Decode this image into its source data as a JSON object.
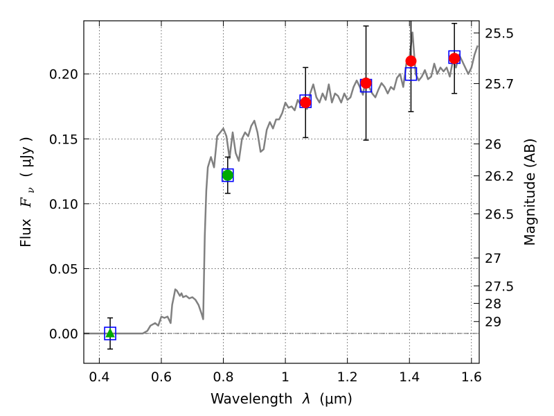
{
  "chart_data": {
    "type": "scatter",
    "xlabel_text": "Wavelength",
    "xlabel_symbol": "λ",
    "xlabel_unit": "(μm)",
    "ylabel_text": "Flux",
    "ylabel_symbol": "F",
    "ylabel_subscript": "ν",
    "ylabel_unit": "( μJy )",
    "y2label": "Magnitude (AB)",
    "xlim": [
      0.35,
      1.625
    ],
    "ylim": [
      -0.023,
      0.241
    ],
    "grid": true,
    "x_ticks": [
      {
        "value": 0.4,
        "label": "0.4"
      },
      {
        "value": 0.6,
        "label": "0.6"
      },
      {
        "value": 0.8,
        "label": "0.8"
      },
      {
        "value": 1.0,
        "label": "1"
      },
      {
        "value": 1.2,
        "label": "1.2"
      },
      {
        "value": 1.4,
        "label": "1.4"
      },
      {
        "value": 1.6,
        "label": "1.6"
      }
    ],
    "y_ticks": [
      {
        "value": 0.0,
        "label": "0.00"
      },
      {
        "value": 0.05,
        "label": "0.05"
      },
      {
        "value": 0.1,
        "label": "0.10"
      },
      {
        "value": 0.15,
        "label": "0.15"
      },
      {
        "value": 0.2,
        "label": "0.20"
      }
    ],
    "mag_ticks": [
      {
        "label": "25.5",
        "flux": 0.2316
      },
      {
        "label": "25.7",
        "flux": 0.1926
      },
      {
        "label": "26",
        "flux": 0.1461
      },
      {
        "label": "26.2",
        "flux": 0.1215
      },
      {
        "label": "26.5",
        "flux": 0.0922
      },
      {
        "label": "27",
        "flux": 0.0582
      },
      {
        "label": "27.5",
        "flux": 0.0367
      },
      {
        "label": "28",
        "flux": 0.0232
      },
      {
        "label": "29",
        "flux": 0.0092
      }
    ],
    "series": [
      {
        "kind": "model_sed",
        "color": "#808080",
        "x": [
          0.35,
          0.54,
          0.555,
          0.565,
          0.58,
          0.59,
          0.6,
          0.61,
          0.62,
          0.63,
          0.635,
          0.64,
          0.645,
          0.65,
          0.66,
          0.665,
          0.67,
          0.68,
          0.69,
          0.7,
          0.71,
          0.72,
          0.73,
          0.735,
          0.74,
          0.745,
          0.75,
          0.76,
          0.77,
          0.78,
          0.79,
          0.8,
          0.81,
          0.82,
          0.83,
          0.84,
          0.85,
          0.86,
          0.87,
          0.88,
          0.89,
          0.9,
          0.91,
          0.92,
          0.93,
          0.94,
          0.95,
          0.96,
          0.97,
          0.98,
          0.99,
          1.0,
          1.01,
          1.02,
          1.03,
          1.04,
          1.05,
          1.06,
          1.07,
          1.08,
          1.09,
          1.1,
          1.11,
          1.12,
          1.13,
          1.14,
          1.15,
          1.16,
          1.17,
          1.18,
          1.19,
          1.2,
          1.21,
          1.22,
          1.23,
          1.24,
          1.25,
          1.26,
          1.27,
          1.28,
          1.29,
          1.3,
          1.31,
          1.32,
          1.33,
          1.34,
          1.35,
          1.36,
          1.37,
          1.38,
          1.39,
          1.4,
          1.41,
          1.42,
          1.43,
          1.44,
          1.45,
          1.46,
          1.47,
          1.48,
          1.49,
          1.5,
          1.51,
          1.52,
          1.53,
          1.54,
          1.55,
          1.56,
          1.57,
          1.58,
          1.59,
          1.6,
          1.61,
          1.62
        ],
        "y": [
          0.0,
          0.0,
          0.002,
          0.006,
          0.008,
          0.006,
          0.013,
          0.012,
          0.013,
          0.008,
          0.022,
          0.028,
          0.034,
          0.033,
          0.029,
          0.031,
          0.028,
          0.029,
          0.027,
          0.028,
          0.026,
          0.022,
          0.015,
          0.011,
          0.075,
          0.11,
          0.128,
          0.136,
          0.128,
          0.152,
          0.155,
          0.158,
          0.152,
          0.135,
          0.155,
          0.139,
          0.133,
          0.15,
          0.155,
          0.152,
          0.16,
          0.164,
          0.155,
          0.14,
          0.142,
          0.157,
          0.163,
          0.158,
          0.165,
          0.165,
          0.17,
          0.178,
          0.174,
          0.175,
          0.172,
          0.18,
          0.176,
          0.182,
          0.173,
          0.185,
          0.192,
          0.182,
          0.178,
          0.185,
          0.18,
          0.192,
          0.178,
          0.185,
          0.183,
          0.178,
          0.185,
          0.18,
          0.182,
          0.19,
          0.195,
          0.19,
          0.184,
          0.197,
          0.19,
          0.185,
          0.182,
          0.188,
          0.193,
          0.19,
          0.185,
          0.19,
          0.188,
          0.197,
          0.2,
          0.19,
          0.208,
          0.212,
          0.232,
          0.2,
          0.195,
          0.198,
          0.203,
          0.196,
          0.198,
          0.208,
          0.2,
          0.205,
          0.202,
          0.205,
          0.198,
          0.21,
          0.205,
          0.215,
          0.21,
          0.205,
          0.2,
          0.205,
          0.215,
          0.222
        ]
      },
      {
        "kind": "model_band_flux",
        "marker": "open-square",
        "color": "#0000ff",
        "x": [
          0.435,
          0.814,
          1.065,
          1.26,
          1.405,
          1.545
        ],
        "y": [
          0.0,
          0.122,
          0.179,
          0.191,
          0.2,
          0.213
        ]
      },
      {
        "kind": "nondetection",
        "marker": "triangle",
        "color": "#00aa00",
        "x": [
          0.435
        ],
        "y": [
          0.0
        ],
        "err": [
          0.012
        ]
      },
      {
        "kind": "detection-optical",
        "marker": "circle",
        "color": "#00aa00",
        "x": [
          0.814
        ],
        "y": [
          0.122
        ],
        "err": [
          0.014
        ]
      },
      {
        "kind": "detection-ir",
        "marker": "circle",
        "color": "#ff0000",
        "x": [
          1.065,
          1.26,
          1.405,
          1.545
        ],
        "y": [
          0.178,
          0.193,
          0.21,
          0.212
        ],
        "err": [
          0.027,
          0.044,
          0.039,
          0.027
        ]
      }
    ]
  }
}
